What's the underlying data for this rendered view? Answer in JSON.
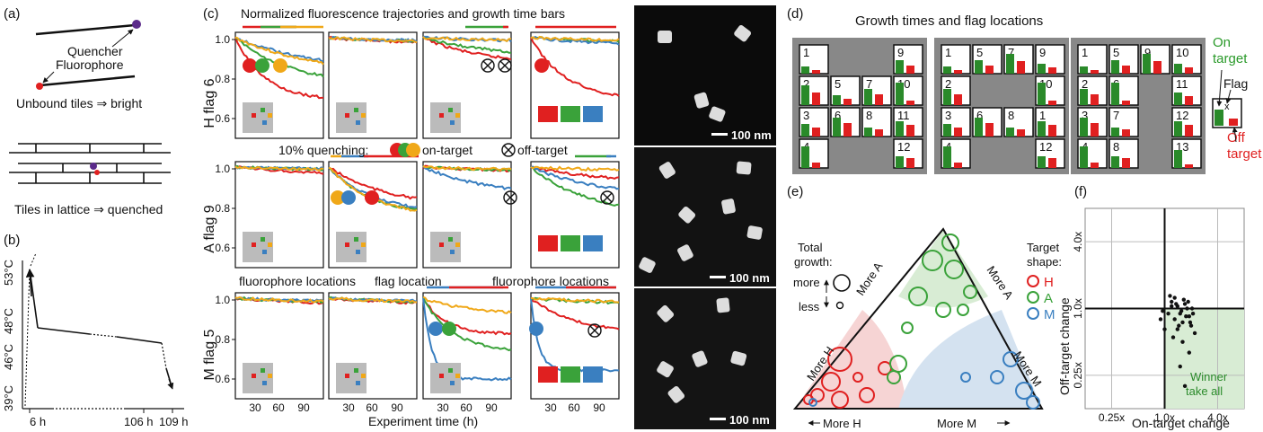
{
  "panel_labels": {
    "a": "(a)",
    "b": "(b)",
    "c": "(c)",
    "d": "(d)",
    "e": "(e)",
    "f": "(f)"
  },
  "panel_a": {
    "quencher": "Quencher",
    "fluorophore": "Fluorophore",
    "unbound": "Unbound tiles ⇒ bright",
    "lattice": "Tiles in lattice ⇒ quenched"
  },
  "panel_b": {
    "temps": [
      "53°C",
      "48°C",
      "46°C",
      "39°C"
    ],
    "times": [
      "6 h",
      "106 h",
      "109 h"
    ],
    "chart_data": {
      "type": "line",
      "x": [
        0,
        6,
        106,
        109
      ],
      "y": [
        39,
        53,
        48,
        39
      ],
      "xlabel": "",
      "ylabel": ""
    }
  },
  "panel_c": {
    "title": "Normalized fluorescence trajectories and growth time bars",
    "rows": [
      "H flag 6",
      "A flag 9",
      "M flag 5"
    ],
    "yticks": [
      "1.0",
      "0.8",
      "0.6"
    ],
    "xticks": [
      "30",
      "60",
      "90"
    ],
    "xlabel": "Experiment time (h)",
    "legend_quench": "10% quenching:",
    "legend_on": "on-target",
    "legend_off": "off-target",
    "annot_fluor_left": "fluorophore locations",
    "annot_flag": "flag location",
    "annot_fluor_right": "fluorophore locations",
    "series_colors": {
      "H": "#e02020",
      "A": "#3aa23a",
      "M": "#3a7fc0",
      "control": "#f0a818"
    }
  },
  "micro": {
    "scale": "100 nm"
  },
  "panel_d": {
    "title": "Growth times and flag locations",
    "H_nums": [
      "1",
      "2",
      "3",
      "4",
      "5",
      "6",
      "7",
      "8",
      "9",
      "10",
      "11",
      "12"
    ],
    "A_nums": [
      "1",
      "5",
      "7",
      "9",
      "2",
      "10",
      "3",
      "6",
      "8",
      "1",
      "4",
      "12"
    ],
    "M_nums": [
      "1",
      "5",
      "9",
      "10",
      "2",
      "6",
      "11",
      "3",
      "7",
      "12",
      "4",
      "8",
      "13"
    ],
    "on_target": [
      "On",
      "target"
    ],
    "flag": "Flag",
    "off_target": [
      "Off",
      "target"
    ],
    "flag_x": "x"
  },
  "panel_e": {
    "total_growth": [
      "Total",
      "growth:"
    ],
    "more": "more",
    "less": "less",
    "target_shape": [
      "Target",
      "shape:"
    ],
    "shapes": [
      "H",
      "A",
      "M"
    ],
    "more_A_left": "More A",
    "more_A_right": "More A",
    "more_H": "More H",
    "more_M": "More M",
    "bottom_H": "More H",
    "bottom_M": "More M"
  },
  "panel_f": {
    "chart_data": {
      "type": "scatter",
      "xlabel": "On-target change",
      "ylabel": "Off-target change",
      "xticks": [
        "0.25x",
        "1.0x",
        "4.0x"
      ],
      "yticks": [
        "4.0x",
        "1.0x",
        "0.25x"
      ],
      "x": [
        0.9,
        1.0,
        1.1,
        1.2,
        1.3,
        1.4,
        1.5,
        1.6,
        1.7,
        1.8,
        1.9,
        2.0,
        2.1,
        2.2,
        1.25,
        1.45,
        1.65,
        1.85,
        2.05,
        1.15,
        1.35,
        1.55,
        1.75,
        1.95,
        0.95,
        1.3,
        1.6,
        1.9,
        1.5,
        1.7,
        1.2,
        1.4
      ],
      "y": [
        0.8,
        0.65,
        0.9,
        1.15,
        1.25,
        1.05,
        0.9,
        0.75,
        1.1,
        1.0,
        0.85,
        0.7,
        0.9,
        0.6,
        0.55,
        0.7,
        1.2,
        1.15,
        1.0,
        1.3,
        1.1,
        0.95,
        0.85,
        0.75,
        0.95,
        0.8,
        0.5,
        0.4,
        0.3,
        0.2,
        1.05,
        0.65
      ],
      "xlim": [
        0.125,
        8
      ],
      "ylim": [
        0.125,
        8
      ]
    },
    "winner": [
      "Winner",
      "take all"
    ]
  }
}
